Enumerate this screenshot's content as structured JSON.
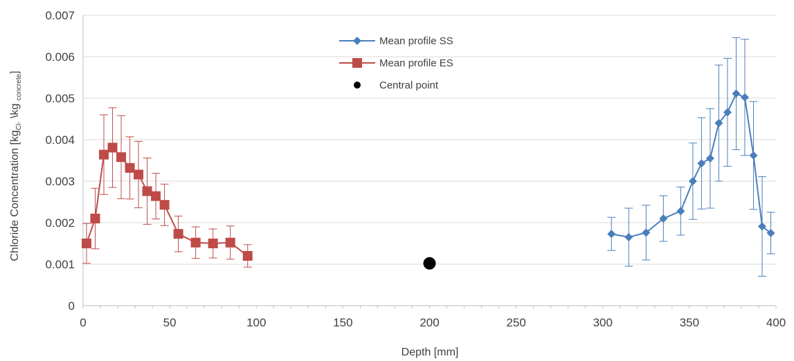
{
  "chart_data": {
    "type": "scatter",
    "title": "",
    "xlabel": "Depth [mm]",
    "ylabel": {
      "main": "Chloride Concentration [kg",
      "sub1": "Cl-",
      "mid": " \\kg ",
      "sub2": "concrete",
      "end": "]"
    },
    "xlim": [
      0,
      400
    ],
    "ylim": [
      0,
      0.007
    ],
    "x_ticks": [
      "0",
      "50",
      "100",
      "150",
      "200",
      "250",
      "300",
      "350",
      "400"
    ],
    "y_ticks": [
      "0",
      "0.001",
      "0.002",
      "0.003",
      "0.004",
      "0.005",
      "0.006",
      "0.007"
    ],
    "grid": true,
    "legend_position": "top-center",
    "series": [
      {
        "name": "Mean profile SS",
        "marker": "diamond",
        "color": "#4A7EBB",
        "x": [
          305,
          315,
          325,
          335,
          345,
          352,
          357,
          362,
          367,
          372,
          377,
          382,
          387,
          392,
          397
        ],
        "y": [
          0.00173,
          0.00165,
          0.00176,
          0.0021,
          0.00228,
          0.003,
          0.00343,
          0.00355,
          0.0044,
          0.00466,
          0.00511,
          0.00502,
          0.00362,
          0.00191,
          0.00175
        ],
        "err": [
          0.0004,
          0.0007,
          0.00066,
          0.00055,
          0.00058,
          0.00092,
          0.0011,
          0.0012,
          0.0014,
          0.0013,
          0.00135,
          0.0014,
          0.0013,
          0.0012,
          0.0005
        ]
      },
      {
        "name": "Mean profile ES",
        "marker": "square",
        "color": "#BE4B48",
        "x": [
          2,
          7,
          12,
          17,
          22,
          27,
          32,
          37,
          42,
          47,
          55,
          65,
          75,
          85,
          95
        ],
        "y": [
          0.0015,
          0.0021,
          0.00364,
          0.00381,
          0.00358,
          0.00332,
          0.00316,
          0.00276,
          0.00264,
          0.00243,
          0.00173,
          0.00152,
          0.0015,
          0.00152,
          0.0012
        ],
        "err": [
          0.00048,
          0.00073,
          0.00096,
          0.00096,
          0.001,
          0.00075,
          0.0008,
          0.0008,
          0.00055,
          0.0005,
          0.00043,
          0.00038,
          0.00035,
          0.0004,
          0.00027
        ]
      },
      {
        "name": "Central point",
        "marker": "circle",
        "color": "#000000",
        "x": [
          200
        ],
        "y": [
          0.00102
        ],
        "err": []
      }
    ]
  }
}
